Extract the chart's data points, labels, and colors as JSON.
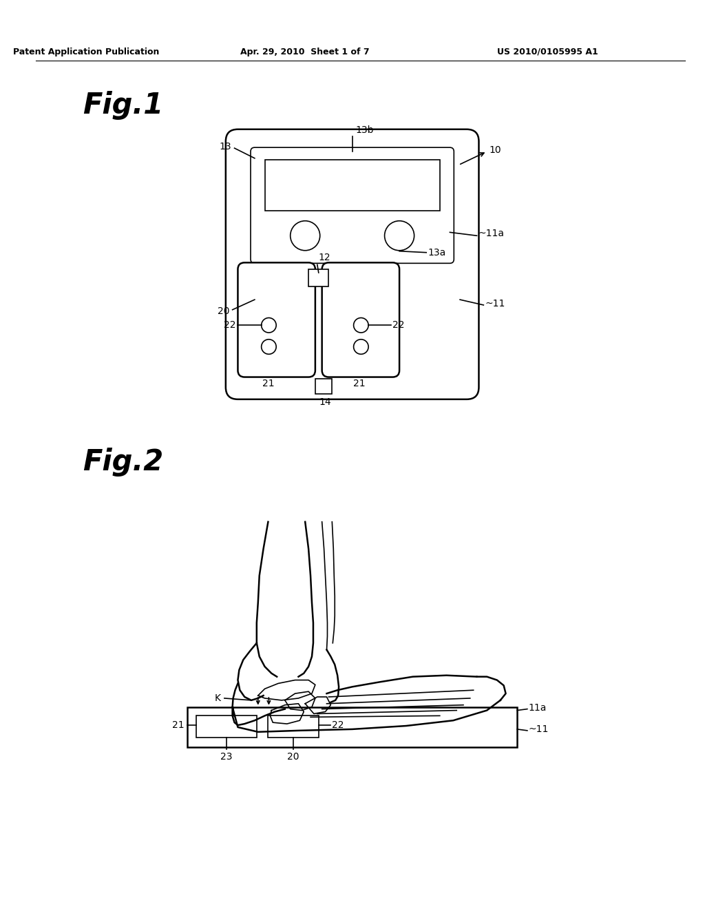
{
  "header_left": "Patent Application Publication",
  "header_mid": "Apr. 29, 2010  Sheet 1 of 7",
  "header_right": "US 2010/0105995 A1",
  "fig1_label": "Fig.1",
  "fig2_label": "Fig.2",
  "bg_color": "#ffffff",
  "line_color": "#000000",
  "lw_main": 1.8,
  "lw_thin": 1.2,
  "label_fs": 10
}
